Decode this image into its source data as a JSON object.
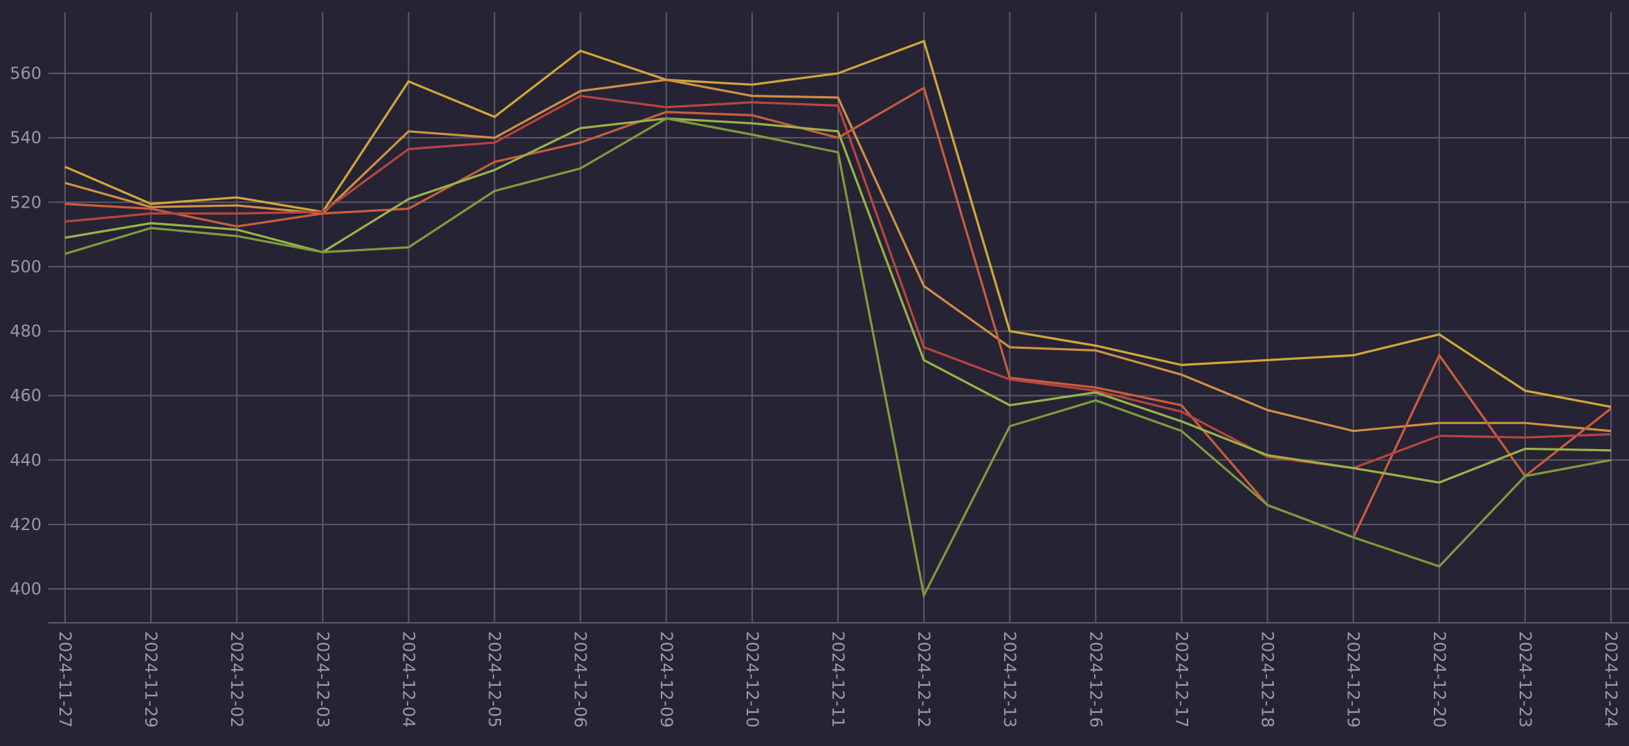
{
  "chart_data": {
    "type": "line",
    "title": "",
    "xlabel": "",
    "ylabel": "",
    "x": [
      "2024-11-27",
      "2024-11-29",
      "2024-12-02",
      "2024-12-03",
      "2024-12-04",
      "2024-12-05",
      "2024-12-06",
      "2024-12-09",
      "2024-12-10",
      "2024-12-11",
      "2024-12-12",
      "2024-12-13",
      "2024-12-16",
      "2024-12-17",
      "2024-12-18",
      "2024-12-19",
      "2024-12-20",
      "2024-12-23",
      "2024-12-24"
    ],
    "yticks": [
      "400",
      "420",
      "440",
      "460",
      "480",
      "500",
      "520",
      "540",
      "560"
    ],
    "ylim": [
      389,
      577
    ],
    "grid": true,
    "legend": "none",
    "series": [
      {
        "color": "#d1a838",
        "values": [
          531,
          519.5,
          521.5,
          517,
          557.5,
          546.5,
          567,
          558,
          556.5,
          560,
          570,
          480,
          475.5,
          469.5,
          471,
          472.5,
          479,
          461.5,
          456.5
        ]
      },
      {
        "color": "#cf9142",
        "values": [
          526,
          518.5,
          519,
          516.5,
          542,
          540,
          554.5,
          558,
          553,
          552.5,
          494,
          475,
          474,
          466.5,
          455.5,
          449,
          451.5,
          451.5,
          449
        ]
      },
      {
        "color": "#c95e3c",
        "values": [
          519.5,
          518,
          512.5,
          516.5,
          518,
          532.5,
          538.5,
          548,
          547,
          540,
          555.5,
          465.5,
          462.5,
          457,
          426,
          416,
          472.5,
          435,
          456
        ]
      },
      {
        "color": "#b9443f",
        "values": [
          514,
          516.5,
          516.5,
          517,
          536.5,
          538.5,
          553,
          549.5,
          551,
          550,
          475,
          465,
          461.5,
          455,
          441,
          437.5,
          447.5,
          447,
          448
        ]
      },
      {
        "color": "#9ab444",
        "values": [
          509,
          513.5,
          511.5,
          504.5,
          521,
          530,
          543,
          546,
          544.5,
          542,
          471,
          457,
          461,
          452,
          441.5,
          437.5,
          433,
          443.5,
          443
        ]
      },
      {
        "color": "#7e9c3c",
        "values": [
          504,
          512,
          509.5,
          504.5,
          506,
          523.5,
          530.5,
          546,
          541,
          535.5,
          398,
          450.5,
          458.5,
          449,
          426,
          416,
          407,
          435,
          440
        ]
      }
    ]
  }
}
